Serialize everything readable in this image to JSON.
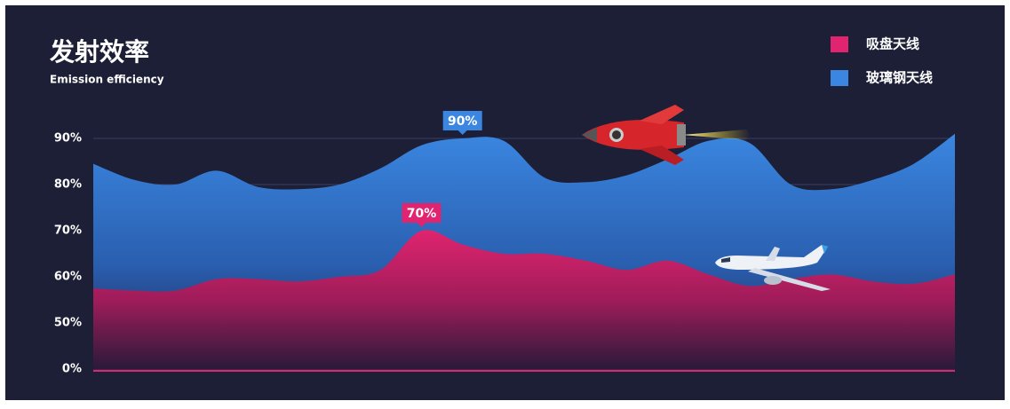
{
  "chart_data": {
    "type": "area",
    "title": "发射效率",
    "subtitle": "Emission efficiency",
    "categories": [
      null,
      null,
      null,
      null,
      null,
      null,
      null,
      null,
      null,
      null,
      null,
      null,
      null,
      null,
      null,
      null,
      null,
      null,
      null,
      null,
      null,
      null
    ],
    "series": [
      {
        "name": "玻璃钢天线",
        "color": "#3a86e0",
        "values": [
          84.5,
          81,
          80,
          83,
          79.5,
          79,
          80,
          83.5,
          88.5,
          90,
          89.5,
          81.5,
          80.5,
          82,
          85.5,
          89.5,
          89,
          80,
          79,
          81,
          84.5,
          91
        ],
        "value_labels": [
          null,
          null,
          null,
          null,
          null,
          null,
          null,
          null,
          null,
          "90%",
          null,
          null,
          null,
          null,
          null,
          null,
          null,
          null,
          null,
          null,
          null,
          null
        ]
      },
      {
        "name": "吸盘天线",
        "color": "#e0246f",
        "values": [
          57.5,
          57,
          57,
          59.5,
          59.5,
          59,
          60,
          61.5,
          70,
          67,
          65,
          65,
          63.5,
          61.5,
          63.5,
          60.5,
          58,
          59.5,
          60.5,
          59,
          58.5,
          60.5
        ],
        "value_labels": [
          null,
          null,
          null,
          null,
          null,
          null,
          null,
          null,
          "70%",
          null,
          null,
          null,
          null,
          null,
          null,
          null,
          null,
          null,
          null,
          null,
          null,
          null
        ]
      }
    ],
    "ylim": [
      0,
      90
    ],
    "yticks": [
      {
        "value": 0,
        "label": "0%"
      },
      {
        "value": 50,
        "label": "50%"
      },
      {
        "value": 60,
        "label": "60%"
      },
      {
        "value": 70,
        "label": "70%"
      },
      {
        "value": 80,
        "label": "80%"
      },
      {
        "value": 90,
        "label": "90%"
      }
    ],
    "grid": true,
    "legend": "top-right"
  }
}
